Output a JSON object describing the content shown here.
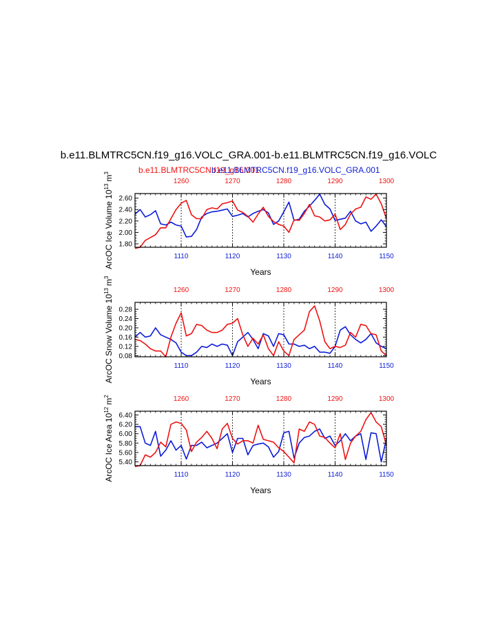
{
  "header": {
    "title": "b.e11.BLMTRC5CN.f19_g16.VOLC_GRA.001-b.e11.BLMTRC5CN.f19_g16.VOLC",
    "subtitle_red": "b.e11.BLMTRC5CN.f19_g16.001",
    "subtitle_blue": "b.e11.BLMTRC5CN.f19_g16.VOLC_GRA.001"
  },
  "colors": {
    "red": "#ee1111",
    "blue": "#0b1bd6",
    "axis": "#000000"
  },
  "chart_data": [
    {
      "type": "line",
      "ylabel": "ArcOC Ice Volume 10",
      "ylabel_exp": "13",
      "ylabel_unit": "m",
      "ylabel_unit_exp": "3",
      "xlabel": "Years",
      "ylim": [
        1.74,
        2.68
      ],
      "yticks": [
        1.8,
        2.0,
        2.2,
        2.4,
        2.6
      ],
      "ytick_labels": [
        "1.80",
        "2.00",
        "2.20",
        "2.40",
        "2.60"
      ],
      "bottom_x": [
        1101,
        1150
      ],
      "bottom_ticks": [
        "1110",
        "1120",
        "1130",
        "1140",
        "1150"
      ],
      "top_ticks": [
        "1260",
        "1270",
        "1280",
        "1290",
        "1300"
      ],
      "series": [
        {
          "name": "b.e11.BLMTRC5CN.f19_g16.VOLC_GRA.001",
          "color": "blue",
          "values": [
            2.32,
            2.4,
            2.27,
            2.31,
            2.38,
            2.15,
            2.13,
            2.18,
            2.13,
            2.11,
            1.92,
            1.93,
            2.05,
            2.27,
            2.33,
            2.36,
            2.37,
            2.39,
            2.41,
            2.28,
            2.3,
            2.33,
            2.27,
            2.33,
            2.37,
            2.4,
            2.34,
            2.14,
            2.2,
            2.36,
            2.53,
            2.21,
            2.23,
            2.37,
            2.46,
            2.56,
            2.67,
            2.49,
            2.41,
            2.21,
            2.23,
            2.25,
            2.37,
            2.2,
            2.15,
            2.18,
            2.02,
            2.11,
            2.22,
            2.1
          ]
        },
        {
          "name": "b.e11.BLMTRC5CN.f19_g16.001",
          "color": "red",
          "values": [
            1.72,
            1.74,
            1.86,
            1.91,
            1.96,
            2.08,
            2.08,
            2.24,
            2.4,
            2.51,
            2.56,
            2.31,
            2.24,
            2.24,
            2.4,
            2.43,
            2.41,
            2.5,
            2.52,
            2.55,
            2.39,
            2.35,
            2.28,
            2.18,
            2.32,
            2.44,
            2.28,
            2.19,
            2.14,
            2.11,
            2.0,
            2.22,
            2.21,
            2.33,
            2.49,
            2.29,
            2.27,
            2.2,
            2.22,
            2.32,
            2.05,
            2.14,
            2.32,
            2.41,
            2.44,
            2.62,
            2.58,
            2.67,
            2.5,
            2.24
          ]
        }
      ]
    },
    {
      "type": "line",
      "ylabel": "ArcOC Snow Volume 10",
      "ylabel_exp": "13",
      "ylabel_unit": "m",
      "ylabel_unit_exp": "3",
      "xlabel": "Years",
      "ylim": [
        0.075,
        0.31
      ],
      "yticks": [
        0.08,
        0.12,
        0.16,
        0.2,
        0.24,
        0.28
      ],
      "ytick_labels": [
        "0.08",
        "0.12",
        "0.16",
        "0.20",
        "0.24",
        "0.28"
      ],
      "bottom_x": [
        1101,
        1150
      ],
      "bottom_ticks": [
        "1110",
        "1120",
        "1130",
        "1140",
        "1150"
      ],
      "top_ticks": [
        "1260",
        "1270",
        "1280",
        "1290",
        "1300"
      ],
      "series": [
        {
          "name": "b.e11.BLMTRC5CN.f19_g16.VOLC_GRA.001",
          "color": "blue",
          "values": [
            0.16,
            0.18,
            0.16,
            0.165,
            0.2,
            0.17,
            0.16,
            0.15,
            0.135,
            0.095,
            0.08,
            0.08,
            0.095,
            0.12,
            0.115,
            0.13,
            0.12,
            0.13,
            0.125,
            0.08,
            0.14,
            0.16,
            0.18,
            0.15,
            0.11,
            0.175,
            0.165,
            0.12,
            0.175,
            0.17,
            0.13,
            0.13,
            0.12,
            0.125,
            0.11,
            0.12,
            0.095,
            0.095,
            0.09,
            0.12,
            0.19,
            0.205,
            0.17,
            0.15,
            0.135,
            0.15,
            0.175,
            0.135,
            0.12,
            0.11
          ]
        },
        {
          "name": "b.e11.BLMTRC5CN.f19_g16.001",
          "color": "red",
          "values": [
            0.15,
            0.145,
            0.13,
            0.11,
            0.1,
            0.1,
            0.075,
            0.16,
            0.22,
            0.265,
            0.165,
            0.175,
            0.215,
            0.21,
            0.19,
            0.18,
            0.18,
            0.19,
            0.215,
            0.22,
            0.24,
            0.17,
            0.12,
            0.155,
            0.13,
            0.17,
            0.11,
            0.08,
            0.14,
            0.1,
            0.08,
            0.15,
            0.17,
            0.19,
            0.27,
            0.295,
            0.23,
            0.14,
            0.11,
            0.12,
            0.115,
            0.125,
            0.18,
            0.16,
            0.215,
            0.21,
            0.175,
            0.17,
            0.1,
            0.08
          ]
        }
      ]
    },
    {
      "type": "line",
      "ylabel": "ArcOC Ice Area 10",
      "ylabel_exp": "12",
      "ylabel_unit": "m",
      "ylabel_unit_exp": "2",
      "xlabel": "Years",
      "ylim": [
        5.32,
        6.48
      ],
      "yticks": [
        5.4,
        5.6,
        5.8,
        6.0,
        6.2,
        6.4
      ],
      "ytick_labels": [
        "5.40",
        "5.60",
        "5.80",
        "6.00",
        "6.20",
        "6.40"
      ],
      "bottom_x": [
        1101,
        1150
      ],
      "bottom_ticks": [
        "1110",
        "1120",
        "1130",
        "1140",
        "1150"
      ],
      "top_ticks": [
        "1260",
        "1270",
        "1280",
        "1290",
        "1300"
      ],
      "series": [
        {
          "name": "b.e11.BLMTRC5CN.f19_g16.VOLC_GRA.001",
          "color": "blue",
          "values": [
            6.15,
            6.15,
            5.8,
            5.75,
            6.05,
            5.52,
            5.65,
            5.85,
            5.65,
            5.75,
            5.46,
            5.75,
            5.75,
            5.82,
            5.7,
            5.75,
            5.8,
            5.9,
            6.0,
            5.6,
            5.9,
            5.9,
            5.55,
            5.75,
            5.78,
            5.8,
            5.72,
            5.5,
            5.62,
            6.02,
            6.05,
            5.48,
            5.8,
            5.92,
            5.95,
            6.05,
            6.1,
            5.9,
            5.95,
            5.75,
            5.85,
            6.0,
            5.85,
            5.95,
            6.0,
            5.45,
            6.02,
            6.0,
            5.4,
            5.9
          ]
        },
        {
          "name": "b.e11.BLMTRC5CN.f19_g16.001",
          "color": "red",
          "values": [
            5.3,
            5.32,
            5.55,
            5.5,
            5.6,
            5.82,
            5.72,
            6.2,
            6.25,
            6.22,
            6.08,
            5.62,
            5.82,
            5.92,
            6.05,
            5.9,
            5.68,
            6.1,
            6.22,
            5.9,
            5.78,
            5.85,
            5.85,
            5.8,
            6.18,
            5.88,
            5.85,
            5.82,
            5.7,
            5.62,
            5.5,
            5.38,
            6.1,
            6.05,
            6.25,
            6.2,
            5.95,
            5.92,
            5.8,
            5.7,
            6.0,
            5.45,
            5.8,
            5.95,
            6.05,
            6.3,
            6.45,
            6.25,
            6.15,
            5.75
          ]
        }
      ]
    }
  ]
}
